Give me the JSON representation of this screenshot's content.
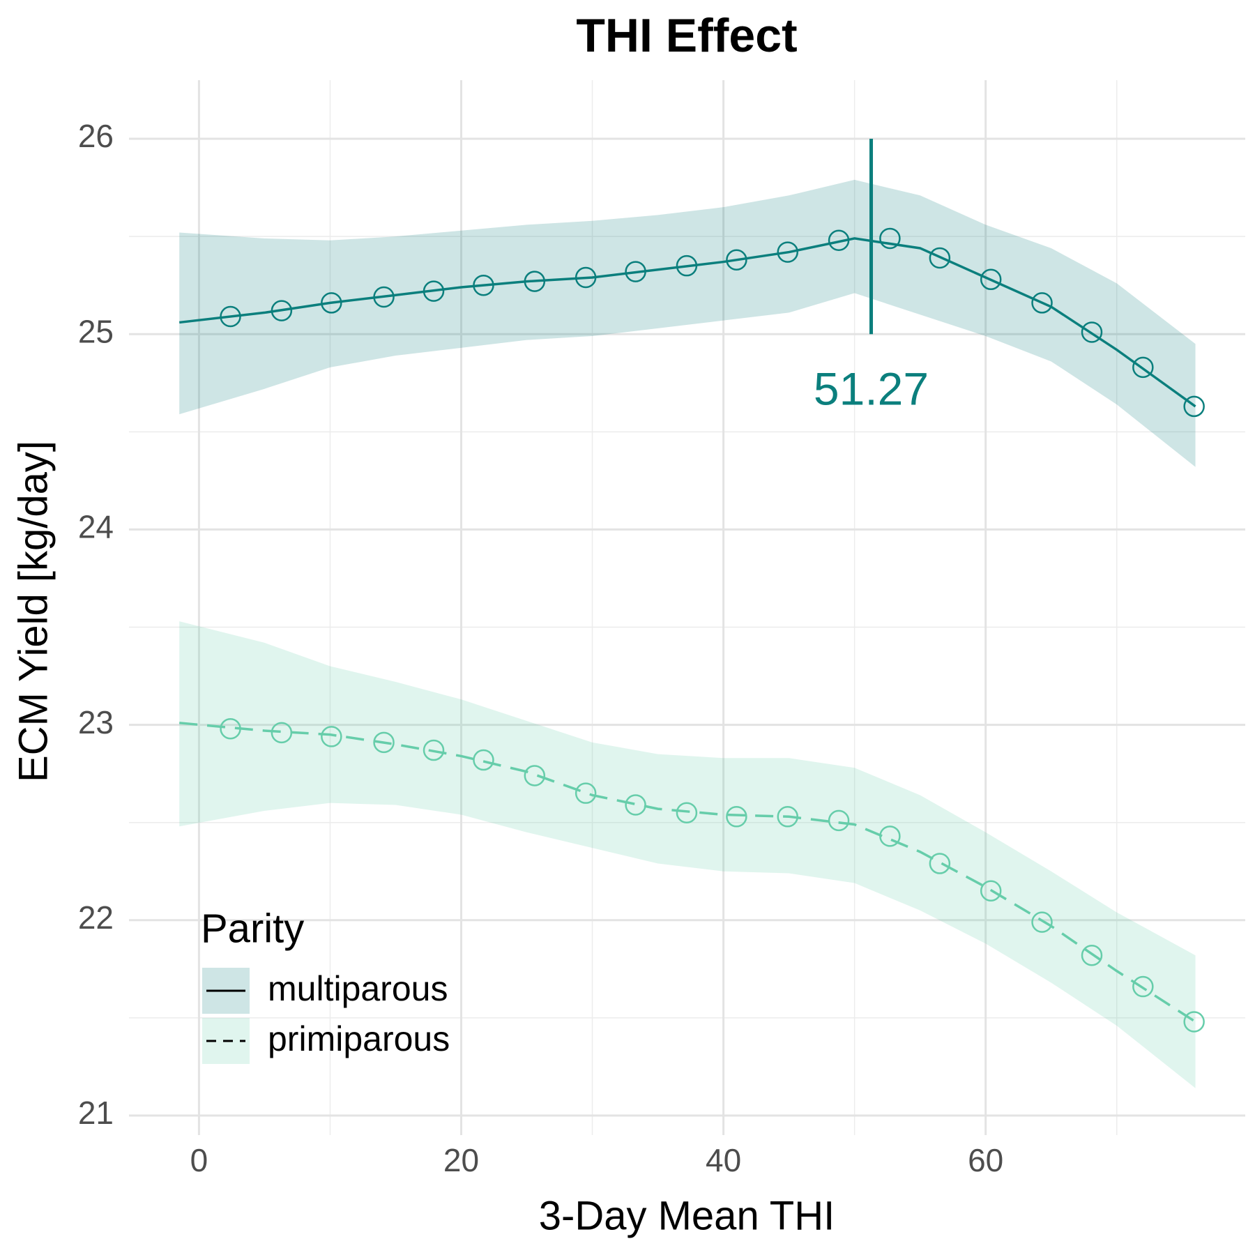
{
  "chart_data": {
    "type": "line",
    "title": "THI Effect",
    "x_label": "3-Day Mean THI",
    "y_label": "ECM Yield [kg/day]",
    "xlim": [
      -5.34,
      79.8
    ],
    "ylim": [
      20.9,
      26.3
    ],
    "xticks": [
      0,
      20,
      40,
      60
    ],
    "yticks": [
      21,
      22,
      23,
      24,
      25,
      26
    ],
    "xminorticks": [
      10,
      30,
      50,
      70
    ],
    "yminorticks": [
      21.5,
      22.5,
      23.5,
      24.5,
      25.5
    ],
    "grid": true,
    "legend": {
      "title": "Parity",
      "position": "bottom-left"
    },
    "series": [
      {
        "name": "multiparous",
        "color": "#0b7f7d",
        "linetype": "solid",
        "x": [
          2.4,
          6.3,
          10.1,
          14.1,
          17.9,
          21.7,
          25.6,
          29.5,
          33.3,
          37.2,
          41.0,
          44.9,
          48.8,
          52.7,
          56.5,
          60.4,
          64.3,
          68.1,
          72.0,
          75.9
        ],
        "values": [
          25.09,
          25.12,
          25.16,
          25.19,
          25.22,
          25.25,
          25.27,
          25.29,
          25.32,
          25.35,
          25.38,
          25.42,
          25.48,
          25.49,
          25.39,
          25.28,
          25.16,
          25.01,
          24.83,
          24.63
        ],
        "fit": {
          "x": [
            -1.5,
            5,
            10,
            15,
            20,
            25,
            30,
            35,
            40,
            45,
            50,
            55,
            60,
            65,
            70,
            76
          ],
          "values": [
            25.06,
            25.11,
            25.16,
            25.2,
            25.24,
            25.27,
            25.29,
            25.33,
            25.37,
            25.42,
            25.49,
            25.44,
            25.29,
            25.14,
            24.92,
            24.63
          ],
          "upper": [
            25.52,
            25.49,
            25.48,
            25.5,
            25.53,
            25.56,
            25.58,
            25.61,
            25.65,
            25.71,
            25.79,
            25.71,
            25.56,
            25.44,
            25.26,
            24.95
          ],
          "lower": [
            24.59,
            24.72,
            24.83,
            24.89,
            24.93,
            24.97,
            24.99,
            25.03,
            25.07,
            25.11,
            25.21,
            25.1,
            24.99,
            24.86,
            24.64,
            24.32
          ]
        }
      },
      {
        "name": "primiparous",
        "color": "#66cdaa",
        "linetype": "dashed",
        "x": [
          2.4,
          6.3,
          10.1,
          14.1,
          17.9,
          21.7,
          25.6,
          29.5,
          33.3,
          37.2,
          41.0,
          44.9,
          48.8,
          52.7,
          56.5,
          60.4,
          64.3,
          68.1,
          72.0,
          75.9
        ],
        "values": [
          22.98,
          22.96,
          22.94,
          22.91,
          22.87,
          22.82,
          22.74,
          22.65,
          22.59,
          22.55,
          22.53,
          22.53,
          22.51,
          22.43,
          22.29,
          22.15,
          21.99,
          21.82,
          21.66,
          21.48
        ],
        "fit": {
          "x": [
            -1.5,
            5,
            10,
            15,
            20,
            25,
            30,
            35,
            40,
            45,
            50,
            55,
            60,
            65,
            70,
            76
          ],
          "values": [
            23.01,
            22.97,
            22.95,
            22.9,
            22.84,
            22.76,
            22.64,
            22.57,
            22.54,
            22.53,
            22.49,
            22.35,
            22.17,
            21.97,
            21.74,
            21.48
          ],
          "upper": [
            23.53,
            23.42,
            23.3,
            23.22,
            23.13,
            23.02,
            22.91,
            22.85,
            22.83,
            22.83,
            22.78,
            22.64,
            22.45,
            22.25,
            22.04,
            21.82
          ],
          "lower": [
            22.48,
            22.56,
            22.6,
            22.59,
            22.54,
            22.45,
            22.37,
            22.29,
            22.25,
            22.24,
            22.19,
            22.05,
            21.88,
            21.68,
            21.46,
            21.14
          ]
        }
      }
    ],
    "vline": {
      "x": 51.27,
      "ymin": 25,
      "ymax": 26,
      "color": "#0b7f7d"
    }
  }
}
